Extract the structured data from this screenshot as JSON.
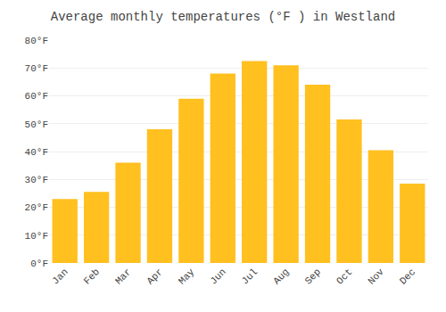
{
  "chart_data": {
    "type": "bar",
    "title": "Average monthly temperatures (°F ) in Westland",
    "categories": [
      "Jan",
      "Feb",
      "Mar",
      "Apr",
      "May",
      "Jun",
      "Jul",
      "Aug",
      "Sep",
      "Oct",
      "Nov",
      "Dec"
    ],
    "values": [
      23,
      25.5,
      36,
      48,
      59,
      68,
      72.5,
      71,
      64,
      51.5,
      40.5,
      28.5
    ],
    "color": "#FFC020",
    "ylim": [
      0,
      80
    ],
    "yticks": [
      {
        "value": 0,
        "label": "0°F"
      },
      {
        "value": 10,
        "label": "10°F"
      },
      {
        "value": 20,
        "label": "20°F"
      },
      {
        "value": 30,
        "label": "30°F"
      },
      {
        "value": 40,
        "label": "40°F"
      },
      {
        "value": 50,
        "label": "50°F"
      },
      {
        "value": 60,
        "label": "60°F"
      },
      {
        "value": 70,
        "label": "70°F"
      },
      {
        "value": 80,
        "label": "80°F"
      }
    ],
    "grid": true
  }
}
